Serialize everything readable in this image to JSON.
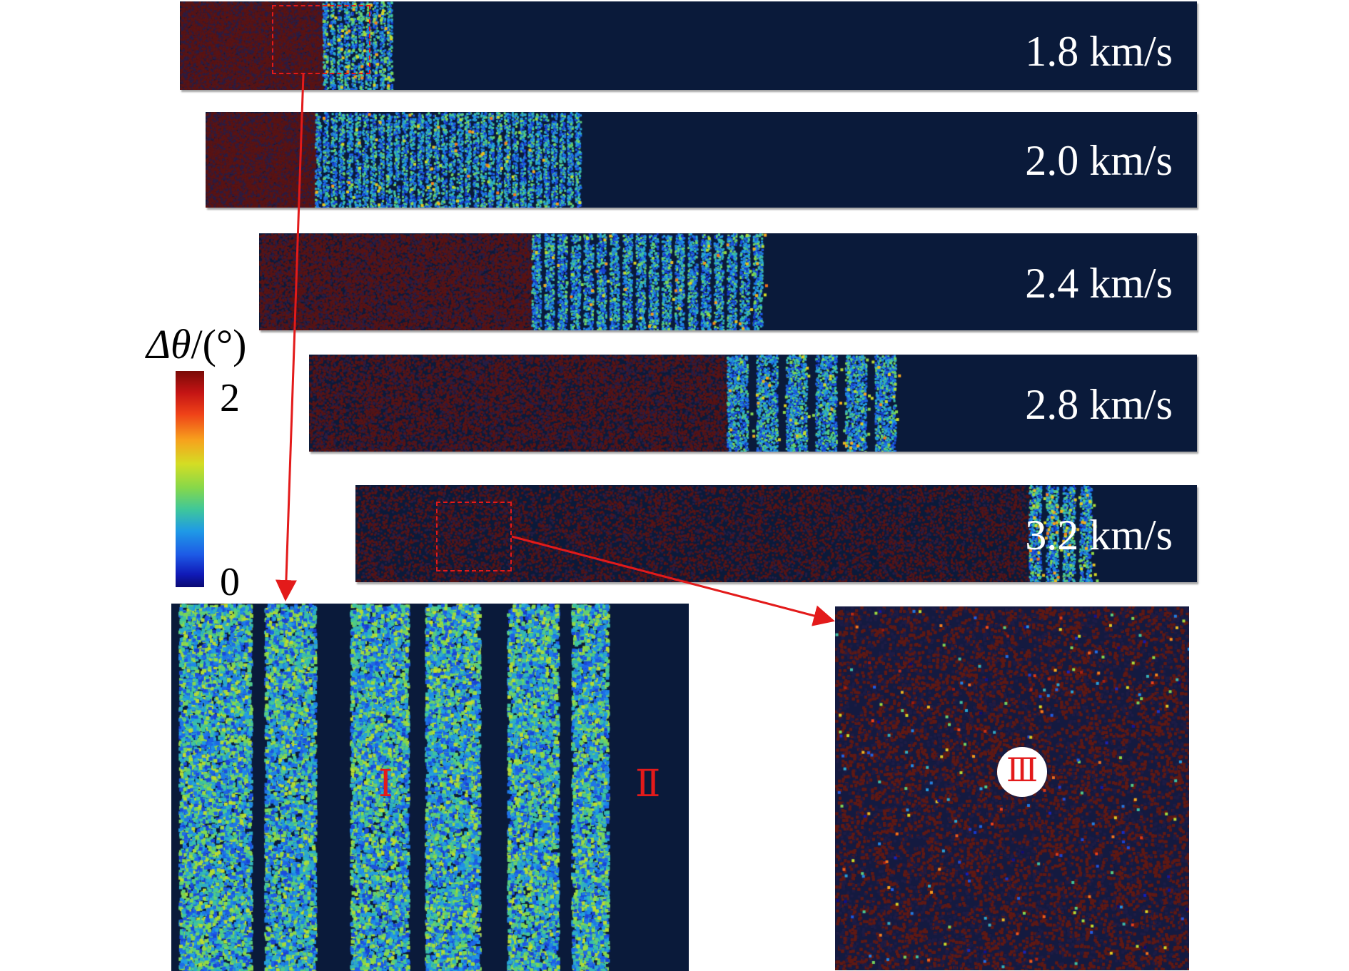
{
  "strips": [
    {
      "label": "1.8 km/s",
      "front": 0.14,
      "shock": 0.21,
      "bands": 10
    },
    {
      "label": "2.0 km/s",
      "front": 0.11,
      "shock": 0.38,
      "bands": 34
    },
    {
      "label": "2.4 km/s",
      "front": 0.29,
      "shock": 0.54,
      "bands": 18
    },
    {
      "label": "2.8 km/s",
      "front": 0.47,
      "shock": 0.67,
      "bands": 6
    },
    {
      "label": "3.2 km/s",
      "front": 0.8,
      "shock": 0.88,
      "bands": 4
    }
  ],
  "colorbar": {
    "title_symbol": "Δθ",
    "title_unit": "/(°)",
    "max": "2",
    "min": "0"
  },
  "zoom_left": {
    "region_label_1": "Ⅰ",
    "region_label_2": "Ⅱ"
  },
  "zoom_right": {
    "region_label": "Ⅲ"
  },
  "colors": {
    "background_navy": "#0a1a3a",
    "annotation_red": "#e31a1a"
  }
}
